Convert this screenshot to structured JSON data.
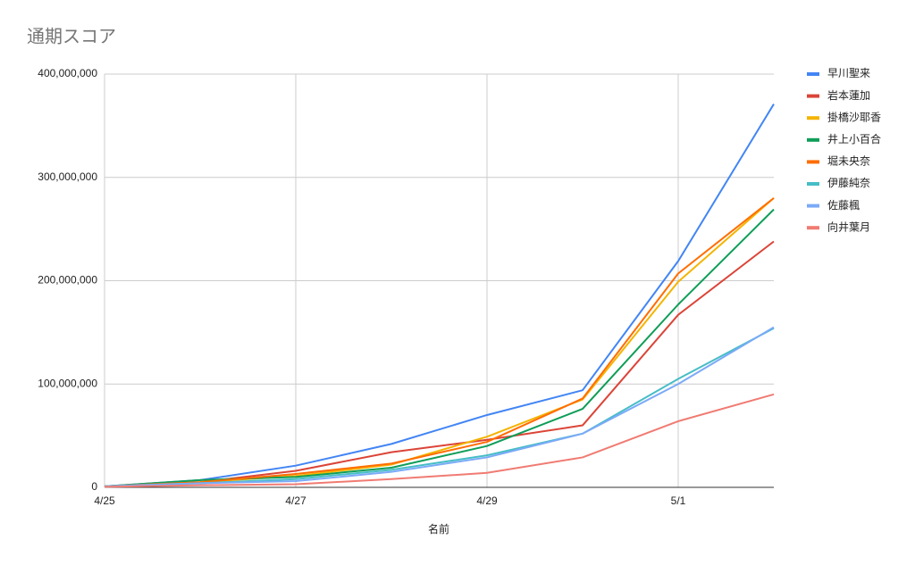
{
  "chart_data": {
    "type": "line",
    "title": "通期スコア",
    "x_label": "名前",
    "categories": [
      "4/25",
      null,
      "4/27",
      null,
      "4/29",
      null,
      "5/1",
      null
    ],
    "series": [
      {
        "name": "早川聖来",
        "color": "#4285f4",
        "values": [
          1000000,
          7000000,
          21000000,
          42000000,
          70000000,
          94000000,
          219000000,
          371000000
        ]
      },
      {
        "name": "岩本蓮加",
        "color": "#db4437",
        "values": [
          1000000,
          5000000,
          16000000,
          34000000,
          46000000,
          60000000,
          167000000,
          238000000
        ]
      },
      {
        "name": "掛橋沙耶香",
        "color": "#f4b400",
        "values": [
          1000000,
          5000000,
          11000000,
          22000000,
          49000000,
          85000000,
          199000000,
          280000000
        ]
      },
      {
        "name": "井上小百合",
        "color": "#0f9d58",
        "values": [
          1000000,
          7000000,
          10000000,
          19000000,
          40000000,
          76000000,
          177000000,
          269000000
        ]
      },
      {
        "name": "堀未央奈",
        "color": "#ff6d01",
        "values": [
          1000000,
          5000000,
          13000000,
          23000000,
          44000000,
          86000000,
          207000000,
          280000000
        ]
      },
      {
        "name": "伊藤純奈",
        "color": "#46bdc6",
        "values": [
          1000000,
          4000000,
          8000000,
          17000000,
          31000000,
          52000000,
          105000000,
          154000000
        ]
      },
      {
        "name": "佐藤楓",
        "color": "#7baaf7",
        "values": [
          1000000,
          4000000,
          6000000,
          15000000,
          29000000,
          52000000,
          100000000,
          155000000
        ]
      },
      {
        "name": "向井葉月",
        "color": "#f07b72",
        "values": [
          500000,
          2000000,
          3000000,
          8000000,
          14000000,
          29000000,
          64000000,
          90000000
        ]
      }
    ],
    "ylim": [
      0,
      400000000
    ],
    "yticks": [
      0,
      {
        "value": 100000000,
        "label": "100,000,000"
      },
      {
        "value": 200000000,
        "label": "200,000,000"
      },
      {
        "value": 300000000,
        "label": "300,000,000"
      },
      {
        "value": 400000000,
        "label": "400,000,000"
      }
    ],
    "grid": true,
    "legend": "right"
  }
}
